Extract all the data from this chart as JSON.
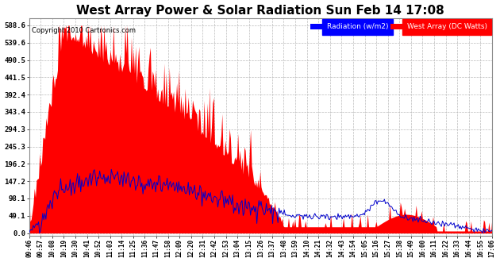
{
  "title": "West Array Power & Solar Radiation Sun Feb 14 17:08",
  "copyright": "Copyright 2010 Cartronics.com",
  "legend_labels": [
    "Radiation (w/m2)",
    "West Array (DC Watts)"
  ],
  "legend_colors": [
    "#0000ff",
    "#ff0000"
  ],
  "yticks": [
    0.0,
    49.1,
    98.1,
    147.2,
    196.2,
    245.3,
    294.3,
    343.4,
    392.4,
    441.5,
    490.5,
    539.6,
    588.6
  ],
  "ymax": 588.6,
  "ymin": 0.0,
  "bg_color": "#ffffff",
  "plot_bg_color": "#ffffff",
  "grid_color": "#bbbbbb",
  "red_color": "#ff0000",
  "blue_color": "#0000cc",
  "title_fontsize": 11,
  "x_labels": [
    "09:46",
    "09:57",
    "10:08",
    "10:19",
    "10:30",
    "10:41",
    "10:52",
    "11:03",
    "11:14",
    "11:25",
    "11:36",
    "11:47",
    "11:58",
    "12:09",
    "12:20",
    "12:31",
    "12:42",
    "12:53",
    "13:04",
    "13:15",
    "13:26",
    "13:37",
    "13:48",
    "13:59",
    "14:10",
    "14:21",
    "14:32",
    "14:43",
    "14:54",
    "15:05",
    "15:16",
    "15:27",
    "15:38",
    "15:49",
    "16:00",
    "16:11",
    "16:22",
    "16:33",
    "16:44",
    "16:55",
    "17:06"
  ]
}
